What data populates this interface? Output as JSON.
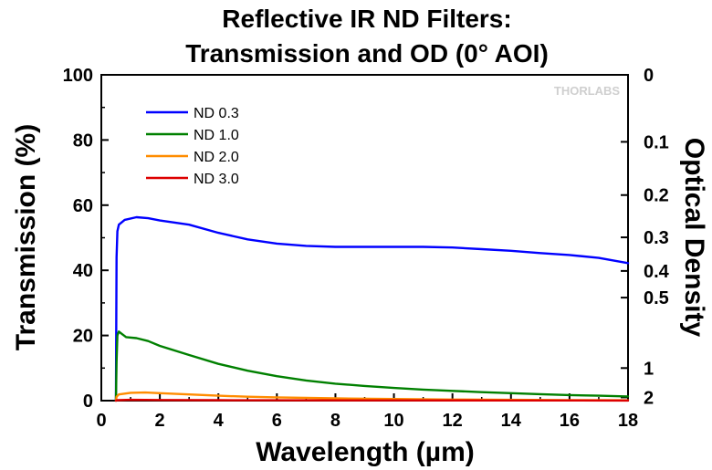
{
  "chart_data": {
    "type": "line",
    "title": [
      "Reflective IR ND Filters:",
      "Transmission and OD (0° AOI)"
    ],
    "xlabel": "Wavelength (µm)",
    "ylabel": "Transmission (%)",
    "y2label": "Optical Density",
    "xlim": [
      0,
      18
    ],
    "ylim": [
      0,
      100
    ],
    "x_ticks": [
      "0",
      "2",
      "4",
      "6",
      "8",
      "10",
      "12",
      "14",
      "16",
      "18"
    ],
    "y_ticks": [
      "0",
      "20",
      "40",
      "60",
      "80",
      "100"
    ],
    "y2_ticks": [
      {
        "label": "0",
        "od": 0
      },
      {
        "label": "0.1",
        "od": 0.1
      },
      {
        "label": "0.2",
        "od": 0.2
      },
      {
        "label": "0.3",
        "od": 0.3
      },
      {
        "label": "0.4",
        "od": 0.4
      },
      {
        "label": "0.5",
        "od": 0.5
      },
      {
        "label": "1",
        "od": 1
      },
      {
        "label": "2",
        "od": 2
      }
    ],
    "grid": false,
    "legend_position": "top-left",
    "series": [
      {
        "name": "ND 0.3",
        "color": "#0000ff",
        "points": [
          [
            0.5,
            0
          ],
          [
            0.52,
            44
          ],
          [
            0.55,
            52
          ],
          [
            0.6,
            54
          ],
          [
            0.8,
            55.5
          ],
          [
            1.2,
            56.3
          ],
          [
            1.6,
            56
          ],
          [
            2,
            55.3
          ],
          [
            3,
            54
          ],
          [
            4,
            51.5
          ],
          [
            5,
            49.5
          ],
          [
            6,
            48.2
          ],
          [
            7,
            47.5
          ],
          [
            8,
            47.2
          ],
          [
            9,
            47.2
          ],
          [
            10,
            47.2
          ],
          [
            11,
            47.2
          ],
          [
            12,
            47
          ],
          [
            13,
            46.5
          ],
          [
            14,
            46
          ],
          [
            15,
            45.3
          ],
          [
            16,
            44.7
          ],
          [
            17,
            43.8
          ],
          [
            18,
            42.2
          ]
        ]
      },
      {
        "name": "ND 1.0",
        "color": "#008000",
        "points": [
          [
            0.5,
            0
          ],
          [
            0.52,
            12
          ],
          [
            0.55,
            20
          ],
          [
            0.6,
            21.2
          ],
          [
            0.7,
            20.5
          ],
          [
            0.85,
            19.5
          ],
          [
            1.2,
            19.2
          ],
          [
            1.6,
            18.3
          ],
          [
            2,
            16.8
          ],
          [
            3,
            14
          ],
          [
            4,
            11.3
          ],
          [
            5,
            9.2
          ],
          [
            6,
            7.5
          ],
          [
            7,
            6.2
          ],
          [
            8,
            5.2
          ],
          [
            9,
            4.5
          ],
          [
            10,
            3.9
          ],
          [
            11,
            3.4
          ],
          [
            12,
            3
          ],
          [
            13,
            2.6
          ],
          [
            14,
            2.3
          ],
          [
            15,
            2
          ],
          [
            16,
            1.7
          ],
          [
            17,
            1.5
          ],
          [
            18,
            1.3
          ]
        ]
      },
      {
        "name": "ND 2.0",
        "color": "#ff8c00",
        "points": [
          [
            0.5,
            0
          ],
          [
            0.52,
            1.2
          ],
          [
            0.6,
            1.9
          ],
          [
            1,
            2.4
          ],
          [
            1.5,
            2.5
          ],
          [
            2,
            2.3
          ],
          [
            3,
            1.9
          ],
          [
            4,
            1.5
          ],
          [
            5,
            1.2
          ],
          [
            6,
            1
          ],
          [
            8,
            0.7
          ],
          [
            10,
            0.5
          ],
          [
            12,
            0.35
          ],
          [
            14,
            0.25
          ],
          [
            16,
            0.18
          ],
          [
            18,
            0.12
          ]
        ]
      },
      {
        "name": "ND 3.0",
        "color": "#dd0000",
        "points": [
          [
            0.5,
            0
          ],
          [
            0.55,
            0.15
          ],
          [
            1,
            0.25
          ],
          [
            2,
            0.2
          ],
          [
            4,
            0.15
          ],
          [
            6,
            0.12
          ],
          [
            10,
            0.08
          ],
          [
            14,
            0.05
          ],
          [
            18,
            0.03
          ]
        ]
      }
    ]
  },
  "logo": {
    "text": "THORLABS"
  }
}
